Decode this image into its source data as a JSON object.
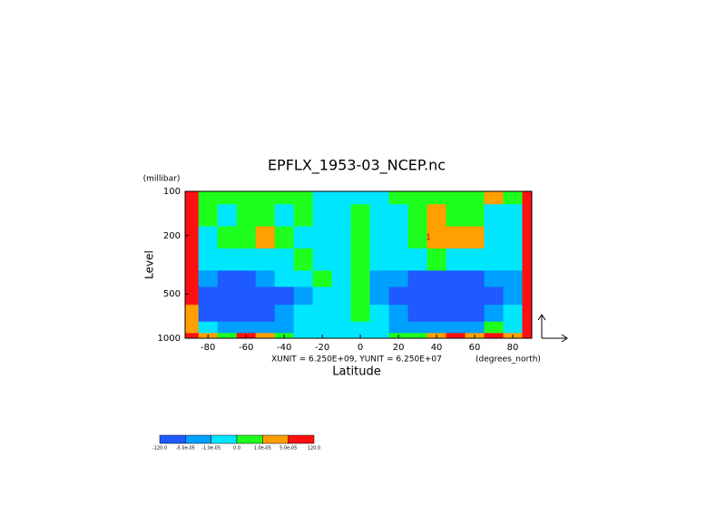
{
  "chart_data": {
    "type": "contour",
    "title": "EPFLX_1953-03_NCEP.nc",
    "ylabel": "Level",
    "yunits": "(millibar)",
    "xlabel": "Latitude",
    "xunits": "(degrees_north)",
    "annotation": "XUNIT = 6.250E+09, YUNIT = 6.250E+07",
    "contour_label": "1",
    "x": [
      -90,
      -80,
      -70,
      -60,
      -50,
      -40,
      -30,
      -20,
      -10,
      0,
      10,
      20,
      30,
      40,
      50,
      60,
      70,
      80,
      90
    ],
    "y": [
      100,
      150,
      200,
      300,
      400,
      500,
      700,
      850,
      1000
    ],
    "z": [
      [
        0.0001,
        5e-06,
        5e-06,
        5e-06,
        5e-06,
        5e-06,
        5e-06,
        -5e-06,
        -5e-06,
        -5e-06,
        -5e-06,
        5e-06,
        5e-06,
        5e-06,
        5e-06,
        5e-06,
        3e-05,
        5e-06,
        0.0001
      ],
      [
        0.0001,
        5e-06,
        -5e-06,
        5e-06,
        5e-06,
        -5e-06,
        5e-06,
        -5e-06,
        -5e-06,
        5e-06,
        -5e-06,
        -5e-06,
        5e-06,
        3e-05,
        5e-06,
        5e-06,
        -5e-06,
        -5e-06,
        0.0001
      ],
      [
        0.0001,
        -5e-06,
        5e-06,
        5e-06,
        3e-05,
        5e-06,
        -5e-06,
        -5e-06,
        -5e-06,
        5e-06,
        -5e-06,
        -5e-06,
        5e-06,
        3e-05,
        3e-05,
        3e-05,
        -5e-06,
        -5e-06,
        0.0001
      ],
      [
        0.0001,
        -5e-06,
        -5e-06,
        -5e-06,
        -5e-06,
        -5e-06,
        5e-06,
        -5e-06,
        -5e-06,
        5e-06,
        -5e-06,
        -5e-06,
        -5e-06,
        5e-06,
        -5e-06,
        -5e-06,
        -5e-06,
        -5e-06,
        0.0001
      ],
      [
        0.0001,
        -3e-05,
        -0.0001,
        -0.0001,
        -3e-05,
        -5e-06,
        -5e-06,
        5e-06,
        -5e-06,
        5e-06,
        -3e-05,
        -3e-05,
        -0.0001,
        -0.0001,
        -0.0001,
        -0.0001,
        -3e-05,
        -3e-05,
        0.0001
      ],
      [
        0.0001,
        -0.0001,
        -0.0001,
        -0.0001,
        -0.0001,
        -0.0001,
        -3e-05,
        -5e-06,
        -5e-06,
        5e-06,
        -3e-05,
        -0.0001,
        -0.0001,
        -0.0001,
        -0.0001,
        -0.0001,
        -0.0001,
        -3e-05,
        0.0001
      ],
      [
        3e-05,
        -0.0001,
        -0.0001,
        -0.0001,
        -0.0001,
        -3e-05,
        -5e-06,
        -5e-06,
        -5e-06,
        5e-06,
        -5e-06,
        -3e-05,
        -0.0001,
        -0.0001,
        -0.0001,
        -0.0001,
        -3e-05,
        -5e-06,
        0.0001
      ],
      [
        3e-05,
        -5e-06,
        -3e-05,
        -3e-05,
        -3e-05,
        -3e-05,
        -5e-06,
        -5e-06,
        -5e-06,
        -5e-06,
        -5e-06,
        -3e-05,
        -3e-05,
        -3e-05,
        -3e-05,
        -3e-05,
        5e-06,
        -5e-06,
        0.0001
      ],
      [
        0.0001,
        3e-05,
        5e-06,
        0.0001,
        3e-05,
        5e-06,
        -5e-06,
        -5e-06,
        -5e-06,
        -5e-06,
        -5e-06,
        5e-06,
        5e-06,
        3e-05,
        0.0001,
        3e-05,
        0.0001,
        3e-05,
        0.0001
      ]
    ],
    "xlim": [
      -92,
      90
    ],
    "xticks": [
      -80,
      -60,
      -40,
      -20,
      0,
      20,
      40,
      60,
      80
    ],
    "ylim": [
      1000,
      100
    ],
    "yticks": [
      100,
      200,
      500,
      1000
    ],
    "ylog": true,
    "levels": [
      {
        "value": -120,
        "label": "-120.0"
      },
      {
        "value": -5e-05,
        "label": "-5.0e-05"
      },
      {
        "value": -1e-05,
        "label": "-1.0e-05"
      },
      {
        "value": 0,
        "label": "0.0"
      },
      {
        "value": 1e-05,
        "label": "1.0e-05"
      },
      {
        "value": 5e-05,
        "label": "5.0e-05"
      },
      {
        "value": 120,
        "label": "120.0"
      }
    ],
    "colors": [
      "#1e5aff",
      "#00a0ff",
      "#00e6ff",
      "#1eff1e",
      "#ffa000",
      "#ff1010"
    ]
  }
}
